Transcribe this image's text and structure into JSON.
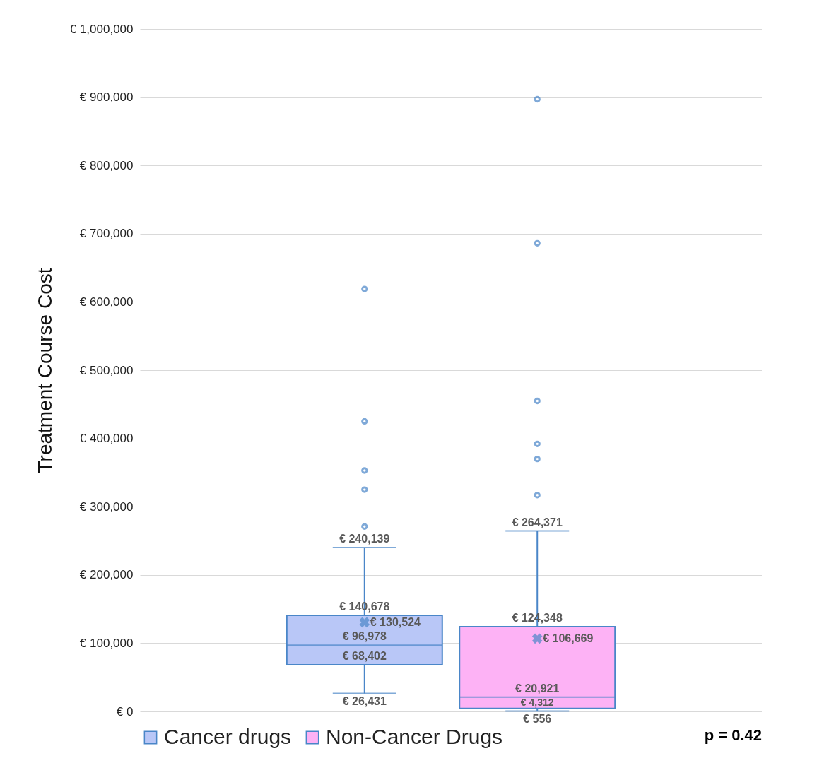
{
  "chart_data": {
    "type": "box",
    "ylabel": "Treatment Course Cost",
    "categories": [
      null
    ],
    "ylim": [
      0,
      1000000
    ],
    "yticks": [
      {
        "value": 0,
        "label": "€ 0"
      },
      {
        "value": 100000,
        "label": "€ 100,000"
      },
      {
        "value": 200000,
        "label": "€ 200,000"
      },
      {
        "value": 300000,
        "label": "€ 300,000"
      },
      {
        "value": 400000,
        "label": "€ 400,000"
      },
      {
        "value": 500000,
        "label": "€ 500,000"
      },
      {
        "value": 600000,
        "label": "€ 600,000"
      },
      {
        "value": 700000,
        "label": "€ 700,000"
      },
      {
        "value": 800000,
        "label": "€ 800,000"
      },
      {
        "value": 900000,
        "label": "€ 900,000"
      },
      {
        "value": 1000000,
        "label": "€ 1,000,000"
      }
    ],
    "grid": "y",
    "legend": "bottom",
    "marker": "circle",
    "series": [
      {
        "name": "Cancer drugs",
        "color": "#b9c7f7",
        "boxes": [
          {
            "low": 26431,
            "q1": 68402,
            "median": 96978,
            "q3": 140678,
            "high": 240139,
            "mean": 130524,
            "outliers": [
              271000,
              325000,
              353000,
              425000,
              619000
            ]
          }
        ]
      },
      {
        "name": "Non-Cancer Drugs",
        "color": "#fdb2f5",
        "boxes": [
          {
            "low": 556,
            "q1": 4312,
            "median": 20921,
            "q3": 124348,
            "high": 264371,
            "mean": 106669,
            "outliers": [
              317000,
              370000,
              392000,
              455000,
              686000,
              897000
            ]
          }
        ]
      }
    ],
    "annotations": [
      "p = 0.42",
      {
        "text": "€ 240,139",
        "y": 240139
      },
      {
        "text": "€ 140,678",
        "y": 140678
      },
      "€ 130,524",
      {
        "text": "€ 96,978",
        "y": 96978
      },
      {
        "text": "€ 68,402",
        "y": 68402
      },
      {
        "text": "€ 26,431",
        "y": 26431
      },
      {
        "text": "€ 264,371",
        "y": 264371
      },
      {
        "text": "€ 124,348",
        "y": 124348
      },
      "€ 106,669",
      {
        "text": "€ 20,921",
        "y": 20921
      },
      {
        "text": "€ 4,312",
        "y": 4312
      },
      {
        "text": "€ 556",
        "y": 556
      }
    ]
  }
}
